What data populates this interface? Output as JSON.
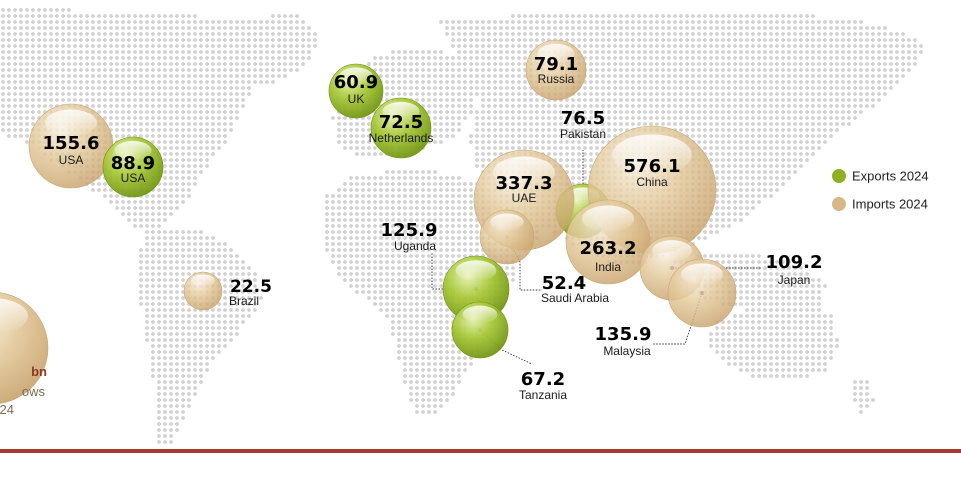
{
  "chart_data": {
    "type": "bubble-map",
    "colors": {
      "export": "#8fb020",
      "import": "#d7b987",
      "dots": "#d2d2d2",
      "accent": "#a63a2f",
      "partial_text": "#8c3a25"
    },
    "legend": [
      {
        "key": "export",
        "label": "Exports 2024"
      },
      {
        "key": "import",
        "label": "Imports 2024"
      }
    ],
    "partial_label": {
      "value": "bn",
      "line2": "ows",
      "line3": "24"
    },
    "bubbles": [
      {
        "value": "155.6",
        "label": "USA",
        "kind": "import"
      },
      {
        "value": "88.9",
        "label": "USA",
        "kind": "export"
      },
      {
        "value": "60.9",
        "label": "UK",
        "kind": "export"
      },
      {
        "value": "72.5",
        "label": "Netherlands",
        "kind": "export"
      },
      {
        "value": "79.1",
        "label": "Russia",
        "kind": "import"
      },
      {
        "value": "76.5",
        "label": "Pakistan",
        "kind": "export"
      },
      {
        "value": "337.3",
        "label": "UAE",
        "kind": "import"
      },
      {
        "value": "576.1",
        "label": "China",
        "kind": "import"
      },
      {
        "value": "263.2",
        "label": "India",
        "kind": "import"
      },
      {
        "value": "125.9",
        "label": "Uganda",
        "kind": "export"
      },
      {
        "value": "52.4",
        "label": "Saudi Arabia",
        "kind": "import"
      },
      {
        "value": "109.2",
        "label": "Japan",
        "kind": "import"
      },
      {
        "value": "135.9",
        "label": "Malaysia",
        "kind": "import"
      },
      {
        "value": "67.2",
        "label": "Tanzania",
        "kind": "export"
      },
      {
        "value": "22.5",
        "label": "Brazil",
        "kind": "import"
      }
    ]
  }
}
